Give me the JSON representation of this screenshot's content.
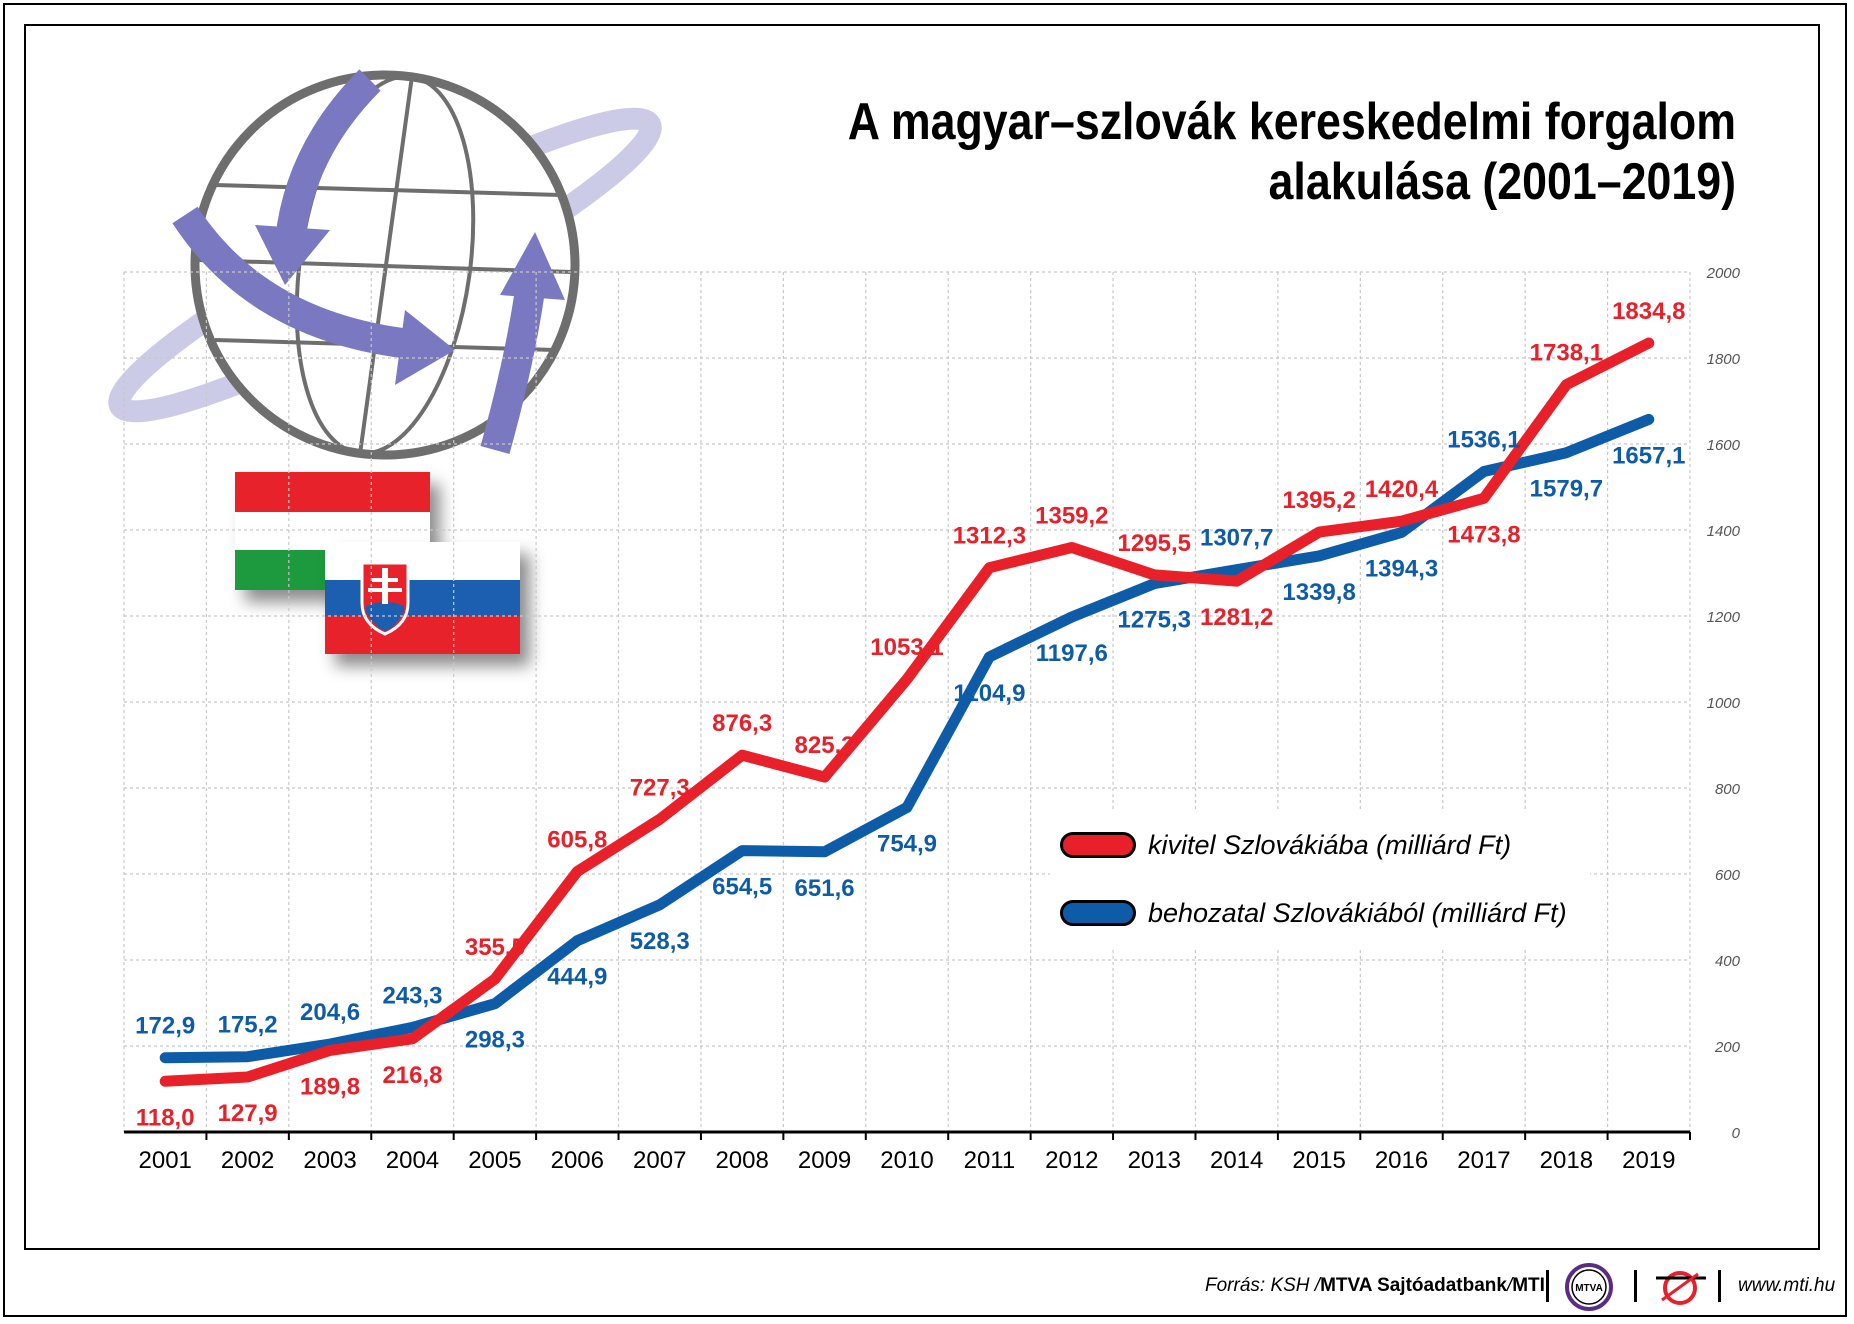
{
  "title_lines": [
    "A magyar–szlovák kereskedelmi forgalom",
    "alakulása (2001–2019)"
  ],
  "colors": {
    "export": "#e8202a",
    "import": "#0e5ca8",
    "globe_arrow": "#7a78c0",
    "hu_green": "#1e9a3c",
    "sk_blue": "#1b5fb0"
  },
  "icons": [
    "globe-trade-arrows-icon",
    "hungary-flag-icon",
    "slovakia-flag-icon",
    "mtva-logo-icon",
    "mti-logo-icon"
  ],
  "chart_data": {
    "type": "line",
    "x": [
      "2001",
      "2002",
      "2003",
      "2004",
      "2005",
      "2006",
      "2007",
      "2008",
      "2009",
      "2010",
      "2011",
      "2012",
      "2013",
      "2014",
      "2015",
      "2016",
      "2017",
      "2018",
      "2019"
    ],
    "series": [
      {
        "name": "kivitel Szlovákiába (milliárd Ft)",
        "values": [
          118.0,
          127.9,
          189.8,
          216.8,
          355.5,
          605.8,
          727.3,
          876.3,
          825.3,
          1053.1,
          1312.3,
          1359.2,
          1295.5,
          1281.2,
          1395.2,
          1420.4,
          1473.8,
          1738.1,
          1834.8
        ],
        "labels": [
          "118,0",
          "127,9",
          "189,8",
          "216,8",
          "355,5",
          "605,8",
          "727,3",
          "876,3",
          "825,3",
          "1053,1",
          "1312,3",
          "1359,2",
          "1295,5",
          "1281,2",
          "1395,2",
          "1420,4",
          "1473,8",
          "1738,1",
          "1834,8"
        ]
      },
      {
        "name": "behozatal Szlovákiából (milliárd Ft)",
        "values": [
          172.9,
          175.2,
          204.6,
          243.3,
          298.3,
          444.9,
          528.3,
          654.5,
          651.6,
          754.9,
          1104.9,
          1197.6,
          1275.3,
          1307.7,
          1339.8,
          1394.3,
          1536.1,
          1579.7,
          1657.1
        ],
        "labels": [
          "172,9",
          "175,2",
          "204,6",
          "243,3",
          "298,3",
          "444,9",
          "528,3",
          "654,5",
          "651,6",
          "754,9",
          "1104,9",
          "1197,6",
          "1275,3",
          "1307,7",
          "1339,8",
          "1394,3",
          "1536,1",
          "1579,7",
          "1657,1"
        ]
      }
    ],
    "ylim": [
      0,
      2000
    ],
    "yticks": [
      0,
      200,
      400,
      600,
      800,
      1000,
      1200,
      1400,
      1600,
      1800,
      2000
    ],
    "y_axis_side": "right",
    "grid": true,
    "legend_position": "center-right"
  },
  "footer": {
    "source_prefix": "Forrás: KSH / ",
    "source_bold": "MTVA Sajtóadatbank",
    "source_mid": " / ",
    "source_mti": "MTI",
    "mtva_logo_text": "MTVA",
    "website": "www.mti.hu"
  }
}
